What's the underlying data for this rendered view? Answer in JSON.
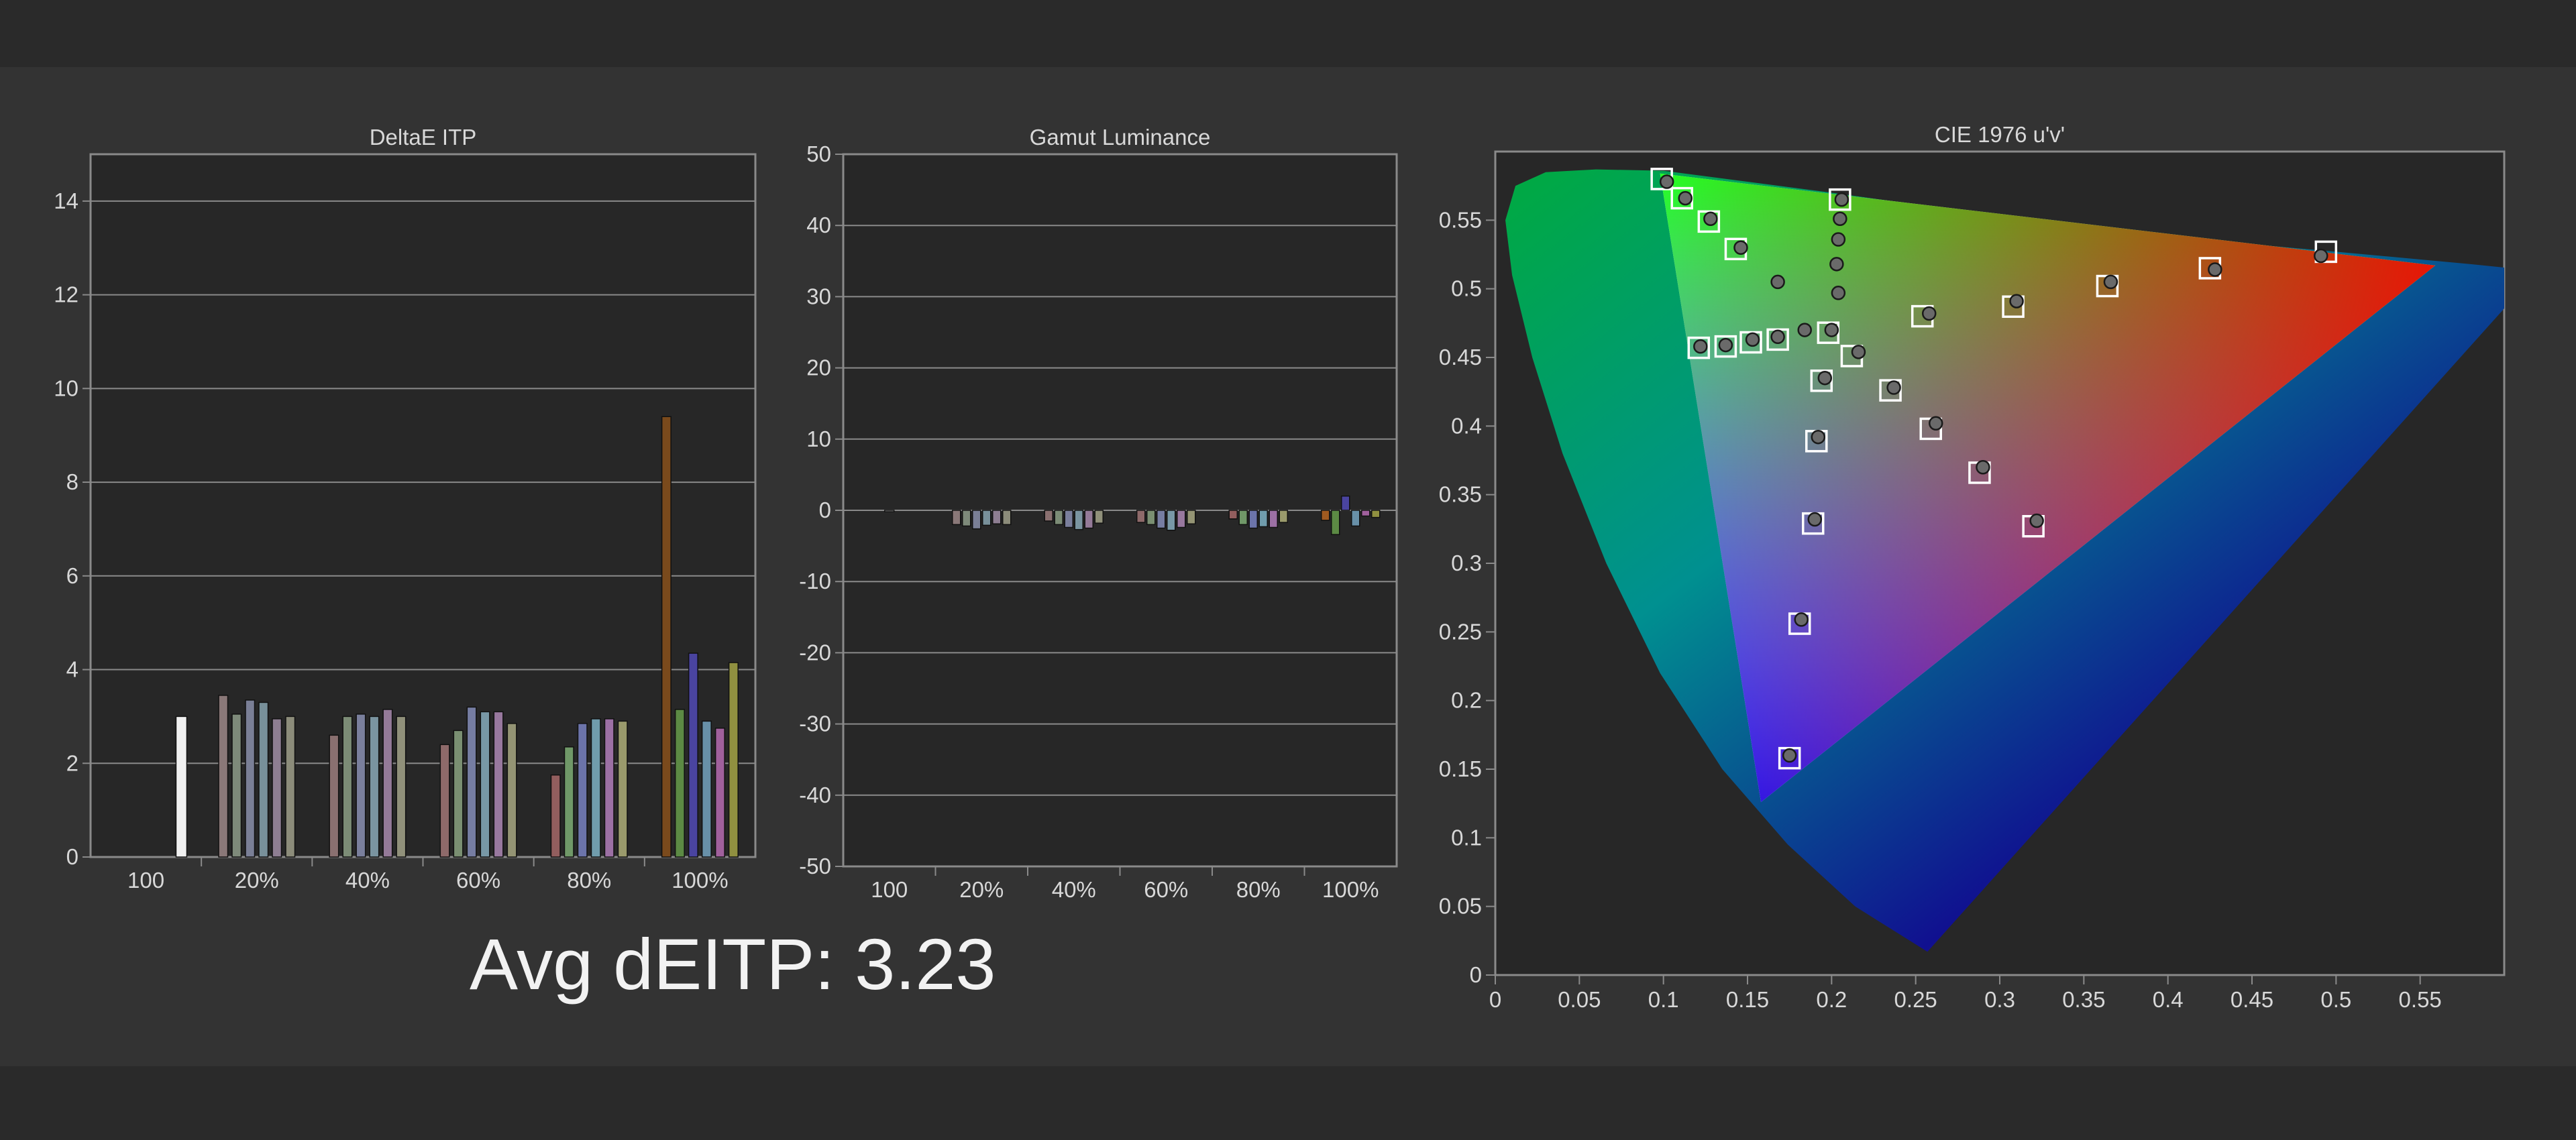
{
  "summary": {
    "label": "Avg dEITP: 3.23"
  },
  "colors": {
    "background": "#2a2a2a",
    "plot_bg": "#272727",
    "grid": "#8a8a8a",
    "text": "#d8d8d8"
  },
  "chart_data": [
    {
      "type": "bar",
      "title": "DeltaE ITP",
      "xlabel": "",
      "ylabel": "",
      "ylim": [
        0,
        15
      ],
      "yticks": [
        0,
        2,
        4,
        6,
        8,
        10,
        12,
        14
      ],
      "grid": true,
      "categories": [
        "100",
        "20%",
        "40%",
        "60%",
        "80%",
        "100%"
      ],
      "groups": [
        {
          "category": "100",
          "bars": [
            {
              "value": 3.0,
              "color": "#f0f0f0"
            }
          ]
        },
        {
          "category": "20%",
          "bars": [
            {
              "value": 3.45,
              "color": "#8a7878"
            },
            {
              "value": 3.05,
              "color": "#7e8a7a"
            },
            {
              "value": 3.35,
              "color": "#7a7f96"
            },
            {
              "value": 3.3,
              "color": "#78909a"
            },
            {
              "value": 2.95,
              "color": "#8e7e92"
            },
            {
              "value": 3.0,
              "color": "#8c8c7a"
            }
          ]
        },
        {
          "category": "40%",
          "bars": [
            {
              "value": 2.6,
              "color": "#8a7070"
            },
            {
              "value": 3.0,
              "color": "#7c8c76"
            },
            {
              "value": 3.05,
              "color": "#7a7f9c"
            },
            {
              "value": 3.0,
              "color": "#7a94a0"
            },
            {
              "value": 3.15,
              "color": "#947a98"
            },
            {
              "value": 3.0,
              "color": "#90907a"
            }
          ]
        },
        {
          "category": "60%",
          "bars": [
            {
              "value": 2.4,
              "color": "#8e6a6a"
            },
            {
              "value": 2.7,
              "color": "#7a8f72"
            },
            {
              "value": 3.2,
              "color": "#767da2"
            },
            {
              "value": 3.1,
              "color": "#7898a6"
            },
            {
              "value": 3.1,
              "color": "#98789e"
            },
            {
              "value": 2.85,
              "color": "#949474"
            }
          ]
        },
        {
          "category": "80%",
          "bars": [
            {
              "value": 1.75,
              "color": "#925e5e"
            },
            {
              "value": 2.35,
              "color": "#709868"
            },
            {
              "value": 2.85,
              "color": "#6c74aa"
            },
            {
              "value": 2.95,
              "color": "#709cac"
            },
            {
              "value": 2.95,
              "color": "#9c70a4"
            },
            {
              "value": 2.9,
              "color": "#9a9a6c"
            }
          ]
        },
        {
          "category": "100%",
          "bars": [
            {
              "value": 9.4,
              "color": "#7a4a1c"
            },
            {
              "value": 3.15,
              "color": "#5c8a44"
            },
            {
              "value": 4.35,
              "color": "#4a44a0"
            },
            {
              "value": 2.9,
              "color": "#6890a8"
            },
            {
              "value": 2.75,
              "color": "#a0609c"
            },
            {
              "value": 4.15,
              "color": "#909040"
            }
          ]
        }
      ]
    },
    {
      "type": "bar",
      "title": "Gamut Luminance",
      "xlabel": "",
      "ylabel": "",
      "ylim": [
        -50,
        50
      ],
      "yticks": [
        -50,
        -40,
        -30,
        -20,
        -10,
        0,
        10,
        20,
        30,
        40,
        50
      ],
      "grid": true,
      "categories": [
        "100",
        "20%",
        "40%",
        "60%",
        "80%",
        "100%"
      ],
      "groups": [
        {
          "category": "100",
          "bars": [
            {
              "value": 0.0,
              "color": "#d0d0d0"
            }
          ]
        },
        {
          "category": "20%",
          "bars": [
            {
              "value": -2.0,
              "color": "#8a7878"
            },
            {
              "value": -2.2,
              "color": "#7e8a7a"
            },
            {
              "value": -2.6,
              "color": "#7a7f96"
            },
            {
              "value": -2.1,
              "color": "#78909a"
            },
            {
              "value": -1.9,
              "color": "#8e7e92"
            },
            {
              "value": -2.0,
              "color": "#8c8c7a"
            }
          ]
        },
        {
          "category": "40%",
          "bars": [
            {
              "value": -1.5,
              "color": "#8a7070"
            },
            {
              "value": -2.0,
              "color": "#7c8c76"
            },
            {
              "value": -2.4,
              "color": "#7a7f9c"
            },
            {
              "value": -2.7,
              "color": "#7a94a0"
            },
            {
              "value": -2.5,
              "color": "#947a98"
            },
            {
              "value": -1.8,
              "color": "#90907a"
            }
          ]
        },
        {
          "category": "60%",
          "bars": [
            {
              "value": -1.7,
              "color": "#8e6a6a"
            },
            {
              "value": -2.0,
              "color": "#7a8f72"
            },
            {
              "value": -2.5,
              "color": "#767da2"
            },
            {
              "value": -2.8,
              "color": "#7898a6"
            },
            {
              "value": -2.4,
              "color": "#98789e"
            },
            {
              "value": -1.9,
              "color": "#949474"
            }
          ]
        },
        {
          "category": "80%",
          "bars": [
            {
              "value": -1.2,
              "color": "#925e5e"
            },
            {
              "value": -2.0,
              "color": "#709868"
            },
            {
              "value": -2.5,
              "color": "#6c74aa"
            },
            {
              "value": -2.3,
              "color": "#709cac"
            },
            {
              "value": -2.4,
              "color": "#9c70a4"
            },
            {
              "value": -1.7,
              "color": "#9a9a6c"
            }
          ]
        },
        {
          "category": "100%",
          "bars": [
            {
              "value": -1.4,
              "color": "#a05a20"
            },
            {
              "value": -3.4,
              "color": "#5c8a44"
            },
            {
              "value": 2.0,
              "color": "#4a44a0"
            },
            {
              "value": -2.2,
              "color": "#6890a8"
            },
            {
              "value": -0.8,
              "color": "#a0609c"
            },
            {
              "value": -1.0,
              "color": "#909040"
            }
          ]
        }
      ]
    },
    {
      "type": "scatter",
      "title": "CIE 1976 u'v'",
      "xlabel": "",
      "ylabel": "",
      "xlim": [
        0,
        0.6
      ],
      "ylim": [
        0,
        0.6
      ],
      "xticks": [
        0,
        0.05,
        0.1,
        0.15,
        0.2,
        0.25,
        0.3,
        0.35,
        0.4,
        0.45,
        0.5,
        0.55
      ],
      "xtick_labels": [
        "0",
        "0.05",
        "0.1",
        "0.15",
        "0.2",
        "0.25",
        "0.3",
        "0.35",
        "0.4",
        "0.45",
        "0.5",
        "0.55"
      ],
      "yticks": [
        0,
        0.05,
        0.1,
        0.15,
        0.2,
        0.25,
        0.3,
        0.35,
        0.4,
        0.45,
        0.5,
        0.55
      ],
      "ytick_labels": [
        "0",
        "0.05",
        "0.1",
        "0.15",
        "0.2",
        "0.25",
        "0.3",
        "0.35",
        "0.4",
        "0.45",
        "0.5",
        "0.55"
      ],
      "grid": false,
      "gamut_triangle": [
        [
          0.098,
          0.584
        ],
        [
          0.559,
          0.517
        ],
        [
          0.158,
          0.126
        ]
      ],
      "targets": [
        [
          0.099,
          0.58
        ],
        [
          0.111,
          0.566
        ],
        [
          0.127,
          0.549
        ],
        [
          0.143,
          0.529
        ],
        [
          0.205,
          0.565
        ],
        [
          0.198,
          0.468
        ],
        [
          0.121,
          0.457
        ],
        [
          0.137,
          0.458
        ],
        [
          0.152,
          0.461
        ],
        [
          0.168,
          0.463
        ],
        [
          0.254,
          0.48
        ],
        [
          0.308,
          0.487
        ],
        [
          0.364,
          0.502
        ],
        [
          0.425,
          0.515
        ],
        [
          0.494,
          0.527
        ],
        [
          0.194,
          0.433
        ],
        [
          0.212,
          0.451
        ],
        [
          0.235,
          0.426
        ],
        [
          0.191,
          0.389
        ],
        [
          0.259,
          0.398
        ],
        [
          0.288,
          0.366
        ],
        [
          0.189,
          0.329
        ],
        [
          0.32,
          0.327
        ],
        [
          0.181,
          0.256
        ],
        [
          0.175,
          0.158
        ]
      ],
      "measured": [
        [
          0.102,
          0.578
        ],
        [
          0.113,
          0.566
        ],
        [
          0.128,
          0.551
        ],
        [
          0.146,
          0.53
        ],
        [
          0.206,
          0.565
        ],
        [
          0.205,
          0.551
        ],
        [
          0.204,
          0.536
        ],
        [
          0.203,
          0.518
        ],
        [
          0.204,
          0.497
        ],
        [
          0.168,
          0.505
        ],
        [
          0.122,
          0.458
        ],
        [
          0.137,
          0.459
        ],
        [
          0.153,
          0.463
        ],
        [
          0.168,
          0.465
        ],
        [
          0.184,
          0.47
        ],
        [
          0.2,
          0.47
        ],
        [
          0.258,
          0.482
        ],
        [
          0.31,
          0.491
        ],
        [
          0.366,
          0.505
        ],
        [
          0.428,
          0.514
        ],
        [
          0.491,
          0.524
        ],
        [
          0.196,
          0.435
        ],
        [
          0.216,
          0.454
        ],
        [
          0.237,
          0.428
        ],
        [
          0.192,
          0.392
        ],
        [
          0.262,
          0.402
        ],
        [
          0.29,
          0.37
        ],
        [
          0.19,
          0.332
        ],
        [
          0.322,
          0.331
        ],
        [
          0.182,
          0.259
        ],
        [
          0.175,
          0.16
        ]
      ]
    }
  ]
}
